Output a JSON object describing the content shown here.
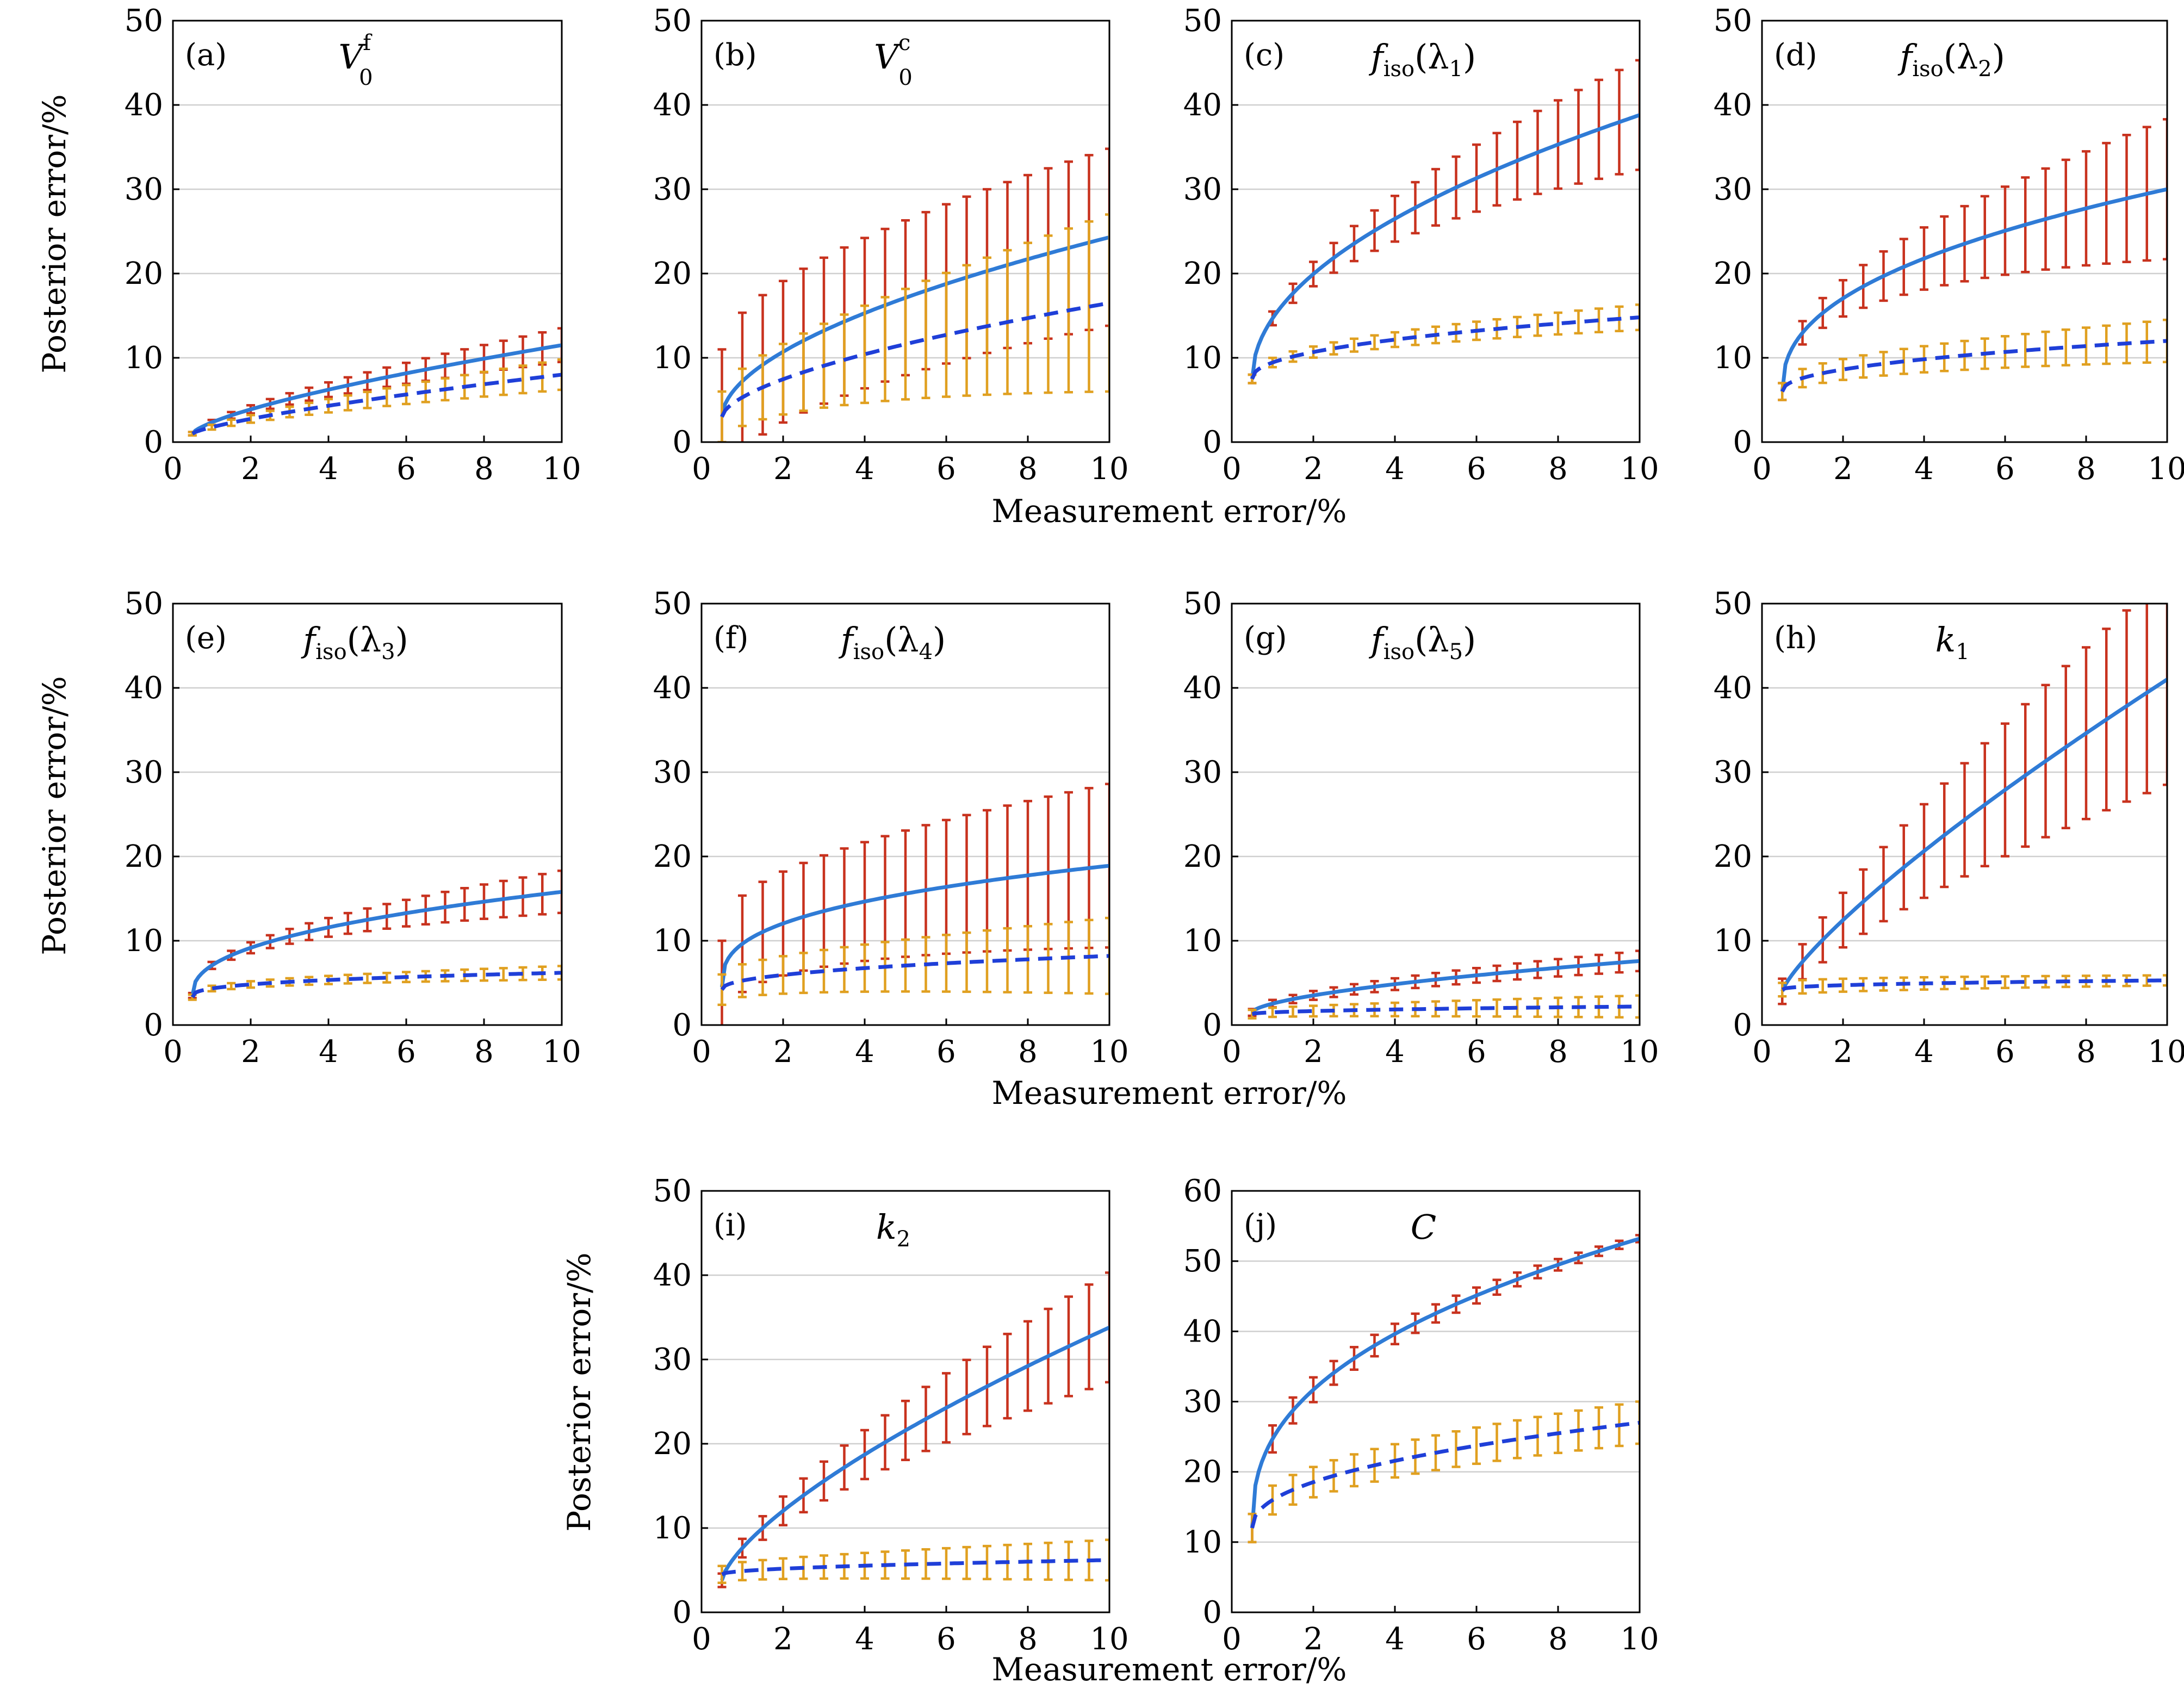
{
  "chart_data": [
    {
      "type": "line",
      "tag": "(a)",
      "title_main": "V",
      "title_sub": "0",
      "title_sup": "f",
      "xlim": [
        0,
        10
      ],
      "ylim": [
        0,
        50
      ],
      "xticks": [
        "0",
        "2",
        "4",
        "6",
        "8",
        "10"
      ],
      "yticks": [
        "0",
        "10",
        "20",
        "30",
        "40",
        "50"
      ],
      "series": [
        {
          "style": "solid",
          "color": "#2f7bd6",
          "bar_color": "#c8321e",
          "start": 1.0,
          "end": 11.5,
          "shape": 0.7,
          "err0": 0.2,
          "err1": 2.0
        },
        {
          "style": "dashed",
          "color": "#1f3fd8",
          "bar_color": "#e0a020",
          "start": 1.0,
          "end": 8.0,
          "shape": 0.75,
          "err0": 0.2,
          "err1": 1.8
        }
      ]
    },
    {
      "type": "line",
      "tag": "(b)",
      "title_main": "V",
      "title_sub": "0",
      "title_sup": "c",
      "xlim": [
        0,
        10
      ],
      "ylim": [
        0,
        50
      ],
      "xticks": [
        "0",
        "2",
        "4",
        "6",
        "8",
        "10"
      ],
      "yticks": [
        "0",
        "10",
        "20",
        "30",
        "40",
        "50"
      ],
      "series": [
        {
          "style": "solid",
          "color": "#2f7bd6",
          "bar_color": "#c8321e",
          "start": 3.0,
          "end": 24.3,
          "shape": 0.55,
          "err0": 8,
          "err1": 10.5
        },
        {
          "style": "dashed",
          "color": "#1f3fd8",
          "bar_color": "#e0a020",
          "start": 3.0,
          "end": 16.5,
          "shape": 0.6,
          "err0": 3,
          "err1": 10.5
        }
      ]
    },
    {
      "type": "line",
      "tag": "(c)",
      "title_main": "f",
      "title_sub": "iso",
      "title_arg": "(λ",
      "title_arg_sub": "1",
      "title_close": ")",
      "xlim": [
        0,
        10
      ],
      "ylim": [
        0,
        50
      ],
      "xticks": [
        "0",
        "2",
        "4",
        "6",
        "8",
        "10"
      ],
      "yticks": [
        "0",
        "10",
        "20",
        "30",
        "40",
        "50"
      ],
      "series": [
        {
          "style": "solid",
          "color": "#2f7bd6",
          "bar_color": "#c8321e",
          "start": 7.5,
          "end": 38.8,
          "shape": 0.5,
          "err0": 0.5,
          "err1": 6.5
        },
        {
          "style": "dashed",
          "color": "#1f3fd8",
          "bar_color": "#e0a020",
          "start": 7.5,
          "end": 14.8,
          "shape": 0.45,
          "err0": 0.5,
          "err1": 1.5
        }
      ]
    },
    {
      "type": "line",
      "tag": "(d)",
      "title_main": "f",
      "title_sub": "iso",
      "title_arg": "(λ",
      "title_arg_sub": "2",
      "title_close": ")",
      "xlim": [
        0,
        10
      ],
      "ylim": [
        0,
        50
      ],
      "xticks": [
        "0",
        "2",
        "4",
        "6",
        "8",
        "10"
      ],
      "yticks": [
        "0",
        "10",
        "20",
        "30",
        "40",
        "50"
      ],
      "series": [
        {
          "style": "solid",
          "color": "#2f7bd6",
          "bar_color": "#c8321e",
          "start": 6.0,
          "end": 30.0,
          "shape": 0.42,
          "err0": 1.0,
          "err1": 8.3
        },
        {
          "style": "dashed",
          "color": "#1f3fd8",
          "bar_color": "#e0a020",
          "start": 6.0,
          "end": 12.0,
          "shape": 0.45,
          "err0": 1.0,
          "err1": 2.5
        }
      ]
    },
    {
      "type": "line",
      "tag": "(e)",
      "title_main": "f",
      "title_sub": "iso",
      "title_arg": "(λ",
      "title_arg_sub": "3",
      "title_close": ")",
      "xlim": [
        0,
        10
      ],
      "ylim": [
        0,
        50
      ],
      "xticks": [
        "0",
        "2",
        "4",
        "6",
        "8",
        "10"
      ],
      "yticks": [
        "0",
        "10",
        "20",
        "30",
        "40",
        "50"
      ],
      "series": [
        {
          "style": "solid",
          "color": "#2f7bd6",
          "bar_color": "#c8321e",
          "start": 3.5,
          "end": 15.8,
          "shape": 0.42,
          "err0": 0.3,
          "err1": 2.5
        },
        {
          "style": "dashed",
          "color": "#1f3fd8",
          "bar_color": "#e0a020",
          "start": 3.3,
          "end": 6.2,
          "shape": 0.35,
          "err0": 0.3,
          "err1": 0.8
        }
      ]
    },
    {
      "type": "line",
      "tag": "(f)",
      "title_main": "f",
      "title_sub": "iso",
      "title_arg": "(λ",
      "title_arg_sub": "4",
      "title_close": ")",
      "xlim": [
        0,
        10
      ],
      "ylim": [
        0,
        50
      ],
      "xticks": [
        "0",
        "2",
        "4",
        "6",
        "8",
        "10"
      ],
      "yticks": [
        "0",
        "10",
        "20",
        "30",
        "40",
        "50"
      ],
      "series": [
        {
          "style": "solid",
          "color": "#2f7bd6",
          "bar_color": "#c8321e",
          "start": 4.5,
          "end": 18.9,
          "shape": 0.35,
          "err0": 5.5,
          "err1": 9.7
        },
        {
          "style": "dashed",
          "color": "#1f3fd8",
          "bar_color": "#e0a020",
          "start": 4.2,
          "end": 8.2,
          "shape": 0.45,
          "err0": 1.8,
          "err1": 4.5
        }
      ]
    },
    {
      "type": "line",
      "tag": "(g)",
      "title_main": "f",
      "title_sub": "iso",
      "title_arg": "(λ",
      "title_arg_sub": "5",
      "title_close": ")",
      "xlim": [
        0,
        10
      ],
      "ylim": [
        0,
        50
      ],
      "xticks": [
        "0",
        "2",
        "4",
        "6",
        "8",
        "10"
      ],
      "yticks": [
        "0",
        "10",
        "20",
        "30",
        "40",
        "50"
      ],
      "series": [
        {
          "style": "solid",
          "color": "#2f7bd6",
          "bar_color": "#c8321e",
          "start": 1.5,
          "end": 7.6,
          "shape": 0.6,
          "err0": 0.4,
          "err1": 1.2
        },
        {
          "style": "dashed",
          "color": "#1f3fd8",
          "bar_color": "#e0a020",
          "start": 1.3,
          "end": 2.2,
          "shape": 0.5,
          "err0": 0.5,
          "err1": 1.3
        }
      ]
    },
    {
      "type": "line",
      "tag": "(h)",
      "title_main": "k",
      "title_sub": "1",
      "xlim": [
        0,
        10
      ],
      "ylim": [
        0,
        50
      ],
      "xticks": [
        "0",
        "2",
        "4",
        "6",
        "8",
        "10"
      ],
      "yticks": [
        "0",
        "10",
        "20",
        "30",
        "40",
        "50"
      ],
      "series": [
        {
          "style": "solid",
          "color": "#2f7bd6",
          "bar_color": "#c8321e",
          "start": 4.0,
          "end": 41.0,
          "shape": 0.8,
          "err0": 1.5,
          "err1": 12.5
        },
        {
          "style": "dashed",
          "color": "#1f3fd8",
          "bar_color": "#e0a020",
          "start": 4.2,
          "end": 5.3,
          "shape": 0.4,
          "err0": 0.8,
          "err1": 0.6
        }
      ]
    },
    {
      "type": "line",
      "tag": "(i)",
      "title_main": "k",
      "title_sub": "2",
      "xlim": [
        0,
        10
      ],
      "ylim": [
        0,
        50
      ],
      "xticks": [
        "0",
        "2",
        "4",
        "6",
        "8",
        "10"
      ],
      "yticks": [
        "0",
        "10",
        "20",
        "30",
        "40",
        "50"
      ],
      "series": [
        {
          "style": "solid",
          "color": "#2f7bd6",
          "bar_color": "#c8321e",
          "start": 3.8,
          "end": 33.8,
          "shape": 0.7,
          "err0": 0.8,
          "err1": 6.5
        },
        {
          "style": "dashed",
          "color": "#1f3fd8",
          "bar_color": "#e0a020",
          "start": 4.5,
          "end": 6.2,
          "shape": 0.5,
          "err0": 1.0,
          "err1": 2.4
        }
      ]
    },
    {
      "type": "line",
      "tag": "(j)",
      "title_main": "C",
      "xlim": [
        0,
        10
      ],
      "ylim": [
        0,
        60
      ],
      "xticks": [
        "0",
        "2",
        "4",
        "6",
        "8",
        "10"
      ],
      "yticks": [
        "0",
        "10",
        "20",
        "30",
        "40",
        "50",
        "60"
      ],
      "series": [
        {
          "style": "solid",
          "color": "#2f7bd6",
          "bar_color": "#c8321e",
          "start": 12.0,
          "end": 53.2,
          "shape": 0.4,
          "err0": 2.0,
          "err1": 0.5
        },
        {
          "style": "dashed",
          "color": "#1f3fd8",
          "bar_color": "#e0a020",
          "start": 12.0,
          "end": 27.0,
          "shape": 0.45,
          "err0": 2.0,
          "err1": 3.0
        }
      ]
    }
  ],
  "labels": {
    "ylabel": "Posterior error/%",
    "xlabel": "Measurement error/%"
  }
}
